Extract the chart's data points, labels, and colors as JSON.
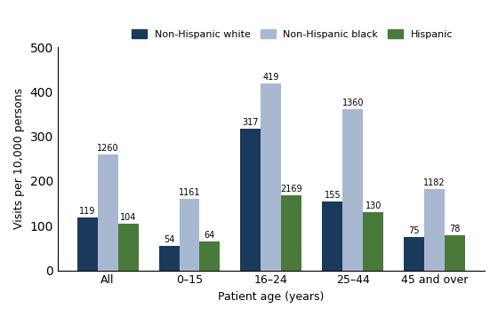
{
  "categories": [
    "All",
    "0–15",
    "16–24",
    "25–44",
    "45 and over"
  ],
  "series": [
    {
      "name": "Non-Hispanic white",
      "color": "#1a3a5c",
      "values": [
        119,
        54,
        317,
        155,
        75
      ]
    },
    {
      "name": "Non-Hispanic black",
      "color": "#a8b8d0",
      "values": [
        260,
        161,
        419,
        360,
        182
      ],
      "superscripts": [
        "1",
        "1",
        "",
        "1",
        "1"
      ]
    },
    {
      "name": "Hispanic",
      "color": "#4a7a3a",
      "values": [
        104,
        64,
        169,
        130,
        78
      ],
      "superscripts": [
        "",
        "",
        "2",
        "",
        ""
      ]
    }
  ],
  "ylabel": "Visits per 10,000 persons",
  "xlabel": "Patient age (years)",
  "ylim": [
    0,
    500
  ],
  "yticks": [
    0,
    100,
    200,
    300,
    400,
    500
  ],
  "bar_width": 0.25,
  "figsize": [
    5.6,
    3.56
  ],
  "dpi": 100,
  "label_annotations": [
    {
      "series": 0,
      "superscripts": [
        "",
        "",
        "",
        "",
        ""
      ]
    },
    {
      "series": 1,
      "superscripts": [
        "1",
        "1",
        "",
        "1",
        "1"
      ]
    },
    {
      "series": 2,
      "superscripts": [
        "",
        "",
        "2",
        "",
        ""
      ]
    }
  ]
}
